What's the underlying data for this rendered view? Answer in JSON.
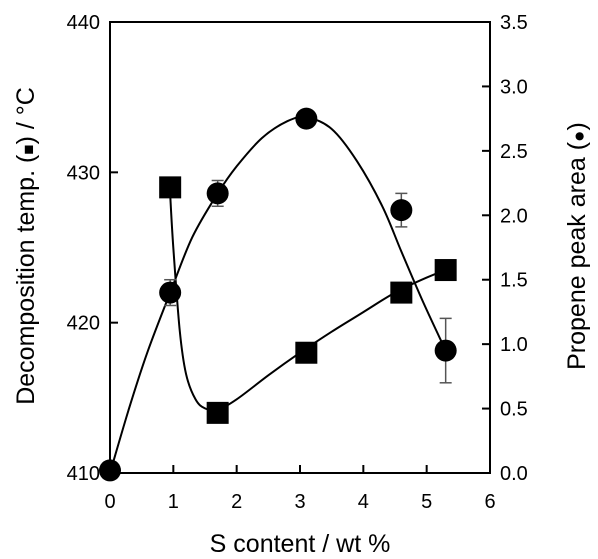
{
  "chart_data": {
    "type": "scatter",
    "xlabel": "S content / wt %",
    "ylabel_left": "Decomposition temp. (■) / °C",
    "ylabel_right": "Propene peak area (●)",
    "ylabel_left_parts": [
      "Decomposition temp. (",
      "■",
      ") / °C"
    ],
    "ylabel_right_parts": [
      "Propene peak area (",
      "●",
      ")"
    ],
    "xlim": [
      0,
      6
    ],
    "ylim_left": [
      410,
      440
    ],
    "ylim_right": [
      0,
      3.5
    ],
    "x_ticks": [
      "0",
      "1",
      "2",
      "3",
      "4",
      "5",
      "6"
    ],
    "y_left_ticks": [
      "410",
      "420",
      "430",
      "440"
    ],
    "y_right_ticks": [
      "0.0",
      "0.5",
      "1.0",
      "1.5",
      "2.0",
      "2.5",
      "3.0",
      "3.5"
    ],
    "grid": false,
    "legend": "none",
    "series": [
      {
        "axis": "left",
        "marker": "square",
        "x": [
          0.95,
          1.7,
          3.1,
          4.6,
          5.3
        ],
        "y": [
          429.0,
          414.0,
          418.0,
          422.0,
          423.5
        ],
        "error": [
          0,
          0,
          0,
          0,
          0
        ],
        "curve_x": [
          0.95,
          1.0,
          1.1,
          1.2,
          1.35,
          1.5,
          1.7,
          2.0,
          2.5,
          3.0,
          3.5,
          4.0,
          4.5,
          5.0,
          5.3
        ],
        "curve_y": [
          428.5,
          425.0,
          419.5,
          416.6,
          414.9,
          414.3,
          414.2,
          414.9,
          416.5,
          418.0,
          419.4,
          420.7,
          422.0,
          423.0,
          423.5
        ]
      },
      {
        "axis": "right",
        "marker": "circle",
        "x": [
          0,
          0.95,
          1.7,
          3.1,
          4.6,
          5.3
        ],
        "y": [
          0.02,
          1.4,
          2.17,
          2.75,
          2.04,
          0.95
        ],
        "error": [
          0,
          0.1,
          0.1,
          0.06,
          0.13,
          0.25
        ],
        "curve_x": [
          0,
          0.3,
          0.6,
          0.95,
          1.3,
          1.7,
          2.0,
          2.4,
          2.8,
          3.1,
          3.5,
          3.9,
          4.3,
          4.6,
          4.95,
          5.3
        ],
        "curve_y": [
          0.0,
          0.5,
          0.95,
          1.4,
          1.83,
          2.17,
          2.38,
          2.6,
          2.73,
          2.76,
          2.67,
          2.42,
          2.07,
          1.72,
          1.32,
          0.95
        ]
      }
    ]
  }
}
